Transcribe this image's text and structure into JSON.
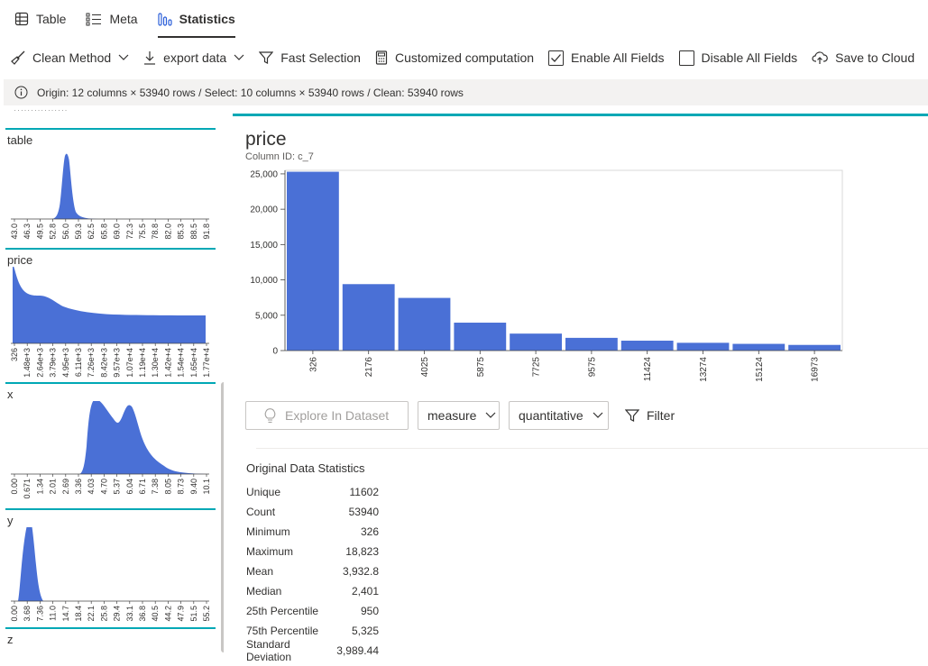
{
  "tabs": [
    {
      "label": "Table",
      "icon": "table-icon"
    },
    {
      "label": "Meta",
      "icon": "list-icon"
    },
    {
      "label": "Statistics",
      "icon": "bar-chart-icon",
      "active": true
    }
  ],
  "toolbar": {
    "clean_method": "Clean Method",
    "export_data": "export data",
    "fast_selection": "Fast Selection",
    "customized_computation": "Customized computation",
    "enable_all": "Enable All Fields",
    "disable_all": "Disable All Fields",
    "save_cloud": "Save to Cloud",
    "enable_all_checked": true,
    "disable_all_checked": false
  },
  "info_bar": {
    "text": "Origin: 12 columns × 53940 rows / Select: 10 columns × 53940 rows / Clean: 53940 rows"
  },
  "sidebar": {
    "fields": [
      {
        "name": "table",
        "ticks": [
          "43.0",
          "46.3",
          "49.5",
          "52.8",
          "56.0",
          "59.3",
          "62.5",
          "65.8",
          "69.0",
          "72.3",
          "75.5",
          "78.8",
          "82.0",
          "85.3",
          "88.5",
          "91.8"
        ]
      },
      {
        "name": "price",
        "ticks": [
          "326",
          "1.48e+3",
          "2.64e+3",
          "3.79e+3",
          "4.95e+3",
          "6.11e+3",
          "7.26e+3",
          "8.42e+3",
          "9.57e+3",
          "1.07e+4",
          "1.19e+4",
          "1.30e+4",
          "1.42e+4",
          "1.54e+4",
          "1.65e+4",
          "1.77e+4"
        ]
      },
      {
        "name": "x",
        "ticks": [
          "0.00",
          "0.671",
          "1.34",
          "2.01",
          "2.69",
          "3.36",
          "4.03",
          "4.70",
          "5.37",
          "6.04",
          "6.71",
          "7.38",
          "8.05",
          "8.73",
          "9.40",
          "10.1"
        ]
      },
      {
        "name": "y",
        "ticks": [
          "0.00",
          "3.68",
          "7.36",
          "11.0",
          "14.7",
          "18.4",
          "22.1",
          "25.8",
          "29.4",
          "33.1",
          "36.8",
          "40.5",
          "44.2",
          "47.9",
          "51.5",
          "55.2"
        ]
      },
      {
        "name": "z",
        "ticks": []
      }
    ],
    "accent": "#00a8b5",
    "fill": "#4a70d6"
  },
  "main": {
    "title": "price",
    "column_id": "Column ID: c_7",
    "explore_label": "Explore In Dataset",
    "measure_label": "measure",
    "quantitative_label": "quantitative",
    "filter_label": "Filter"
  },
  "chart_data": {
    "type": "bar",
    "categories": [
      "326",
      "2176",
      "4025",
      "5875",
      "7725",
      "9575",
      "11424",
      "13274",
      "15124",
      "16973"
    ],
    "values": [
      25300,
      9400,
      7450,
      3950,
      2400,
      1800,
      1400,
      1100,
      950,
      800
    ],
    "ylim": [
      0,
      25500
    ],
    "yticks": [
      0,
      5000,
      10000,
      15000,
      20000,
      25000
    ],
    "ytick_labels": [
      "0",
      "5,000",
      "10,000",
      "15,000",
      "20,000",
      "25,000"
    ],
    "color": "#4a70d6",
    "grid": false
  },
  "stats": {
    "heading": "Original Data Statistics",
    "rows": [
      {
        "label": "Unique",
        "value": "11602"
      },
      {
        "label": "Count",
        "value": "53940"
      },
      {
        "label": "Minimum",
        "value": "326"
      },
      {
        "label": "Maximum",
        "value": "18,823"
      },
      {
        "label": "Mean",
        "value": "3,932.8"
      },
      {
        "label": "Median",
        "value": "2,401"
      },
      {
        "label": "25th Percentile",
        "value": "950"
      },
      {
        "label": "75th Percentile",
        "value": "5,325"
      },
      {
        "label": "Standard Deviation",
        "value": "3,989.44"
      }
    ]
  }
}
